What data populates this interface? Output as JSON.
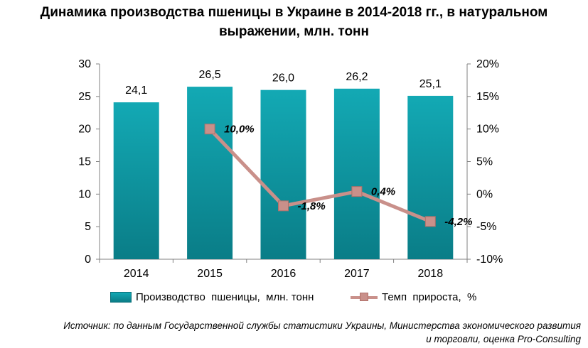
{
  "title_lines": [
    "Динамика производства пшеницы в Украине в 2014-2018 гг., в натуральном",
    "выражении, млн. тонн"
  ],
  "chart_data": {
    "type": "bar",
    "categories": [
      "2014",
      "2015",
      "2016",
      "2017",
      "2018"
    ],
    "series": [
      {
        "name": "Производство  пшеницы,  млн. тонн",
        "type": "bar",
        "axis": "left",
        "values": [
          24.1,
          26.5,
          26.0,
          26.2,
          25.1
        ],
        "labels": [
          "24,1",
          "26,5",
          "26,0",
          "26,2",
          "25,1"
        ]
      },
      {
        "name": "Темп  прироста,  %",
        "type": "line",
        "axis": "right",
        "values": [
          null,
          10.0,
          -1.8,
          0.4,
          -4.2
        ],
        "labels": [
          "",
          "10,0%",
          "-1,8%",
          "0,4%",
          "-4,2%"
        ]
      }
    ],
    "y_left": {
      "min": 0,
      "max": 30,
      "ticks": [
        0,
        5,
        10,
        15,
        20,
        25,
        30
      ],
      "tick_labels": [
        "0",
        "5",
        "10",
        "15",
        "20",
        "25",
        "30"
      ]
    },
    "y_right": {
      "min": -10,
      "max": 20,
      "ticks": [
        -10,
        -5,
        0,
        5,
        10,
        15,
        20
      ],
      "tick_labels": [
        "-10%",
        "-5%",
        "0%",
        "5%",
        "10%",
        "15%",
        "20%"
      ]
    },
    "grid": false,
    "legend_position": "bottom",
    "colors": {
      "bar": "#0e99a3",
      "bar_light": "#13a9b4",
      "line": "#c9908a",
      "marker": "#c9908a"
    }
  },
  "source_lines": [
    "Источник: по данным Государственной службы статистики Украины, Министерства экономического развития",
    "и торговли, оценка Pro-Consulting"
  ]
}
